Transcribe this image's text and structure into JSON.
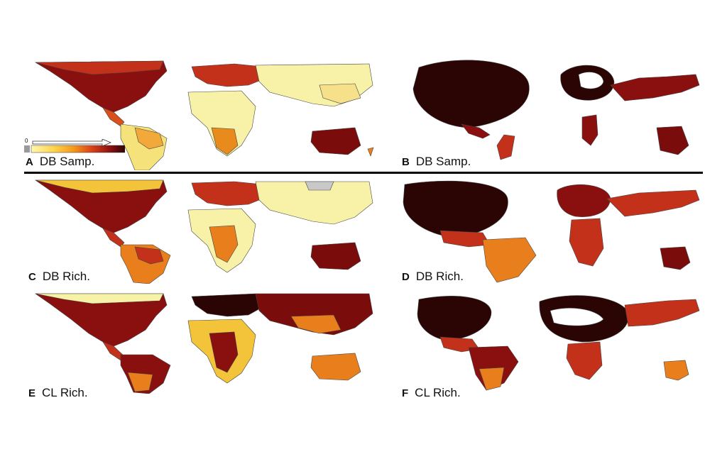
{
  "panels": [
    {
      "letter": "A",
      "text": "DB Samp.",
      "projection": "standard",
      "metric": "database sampling"
    },
    {
      "letter": "B",
      "text": "DB Samp.",
      "projection": "cartogram",
      "metric": "database sampling"
    },
    {
      "letter": "C",
      "text": "DB Rich.",
      "projection": "standard",
      "metric": "database richness"
    },
    {
      "letter": "D",
      "text": "DB Rich.",
      "projection": "cartogram",
      "metric": "database richness"
    },
    {
      "letter": "E",
      "text": "CL Rich.",
      "projection": "standard",
      "metric": "checklist richness"
    },
    {
      "letter": "F",
      "text": "CL Rich.",
      "projection": "cartogram",
      "metric": "checklist richness"
    }
  ],
  "legend": {
    "zero_label": "0",
    "gradient": [
      "#fff7b0",
      "#ffd24a",
      "#f59a1a",
      "#d9401a",
      "#8a0f0f",
      "#2a0505"
    ],
    "zero_color": "#9a9a9a"
  },
  "colors": {
    "low": "#f8f2a8",
    "mid_low": "#f3c33a",
    "mid": "#e87f1c",
    "mid_high": "#c3311a",
    "high": "#7a0c0c",
    "max": "#2b0404",
    "nodata": "#c8c8c8",
    "outline": "#333333"
  }
}
